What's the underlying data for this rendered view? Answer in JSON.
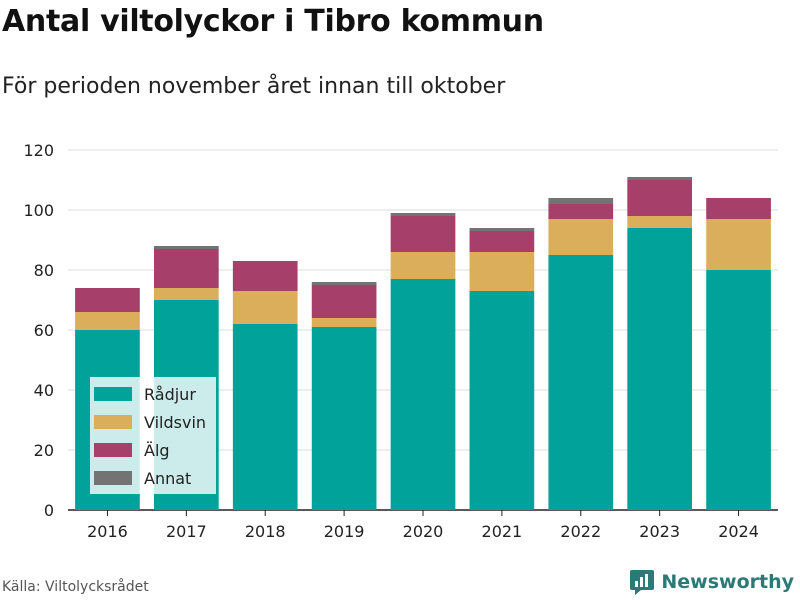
{
  "title": "Antal viltolyckor i Tibro kommun",
  "subtitle": "För perioden november året innan till oktober",
  "source": "Källa: Viltolycksrådet",
  "brand": {
    "name": "Newsworthy",
    "icon": "newsworthy-logo-icon",
    "color": "#2b7a78"
  },
  "chart_data": {
    "type": "bar",
    "stacked": true,
    "categories": [
      "2016",
      "2017",
      "2018",
      "2019",
      "2020",
      "2021",
      "2022",
      "2023",
      "2024"
    ],
    "series": [
      {
        "name": "Rådjur",
        "color": "#00a29a",
        "values": [
          60,
          70,
          62,
          61,
          77,
          73,
          85,
          94,
          80
        ]
      },
      {
        "name": "Vildsvin",
        "color": "#dbae5b",
        "values": [
          6,
          4,
          11,
          3,
          9,
          13,
          12,
          4,
          17
        ]
      },
      {
        "name": "Älg",
        "color": "#a63f69",
        "values": [
          8,
          13,
          10,
          11,
          12,
          7,
          5,
          12,
          7
        ]
      },
      {
        "name": "Annat",
        "color": "#737373",
        "values": [
          0,
          1,
          0,
          1,
          1,
          1,
          2,
          1,
          0
        ]
      }
    ],
    "yticks": [
      0,
      20,
      40,
      60,
      80,
      100,
      120
    ],
    "ylim": [
      0,
      120
    ],
    "grid": true,
    "legend_position": "bottom-left"
  }
}
